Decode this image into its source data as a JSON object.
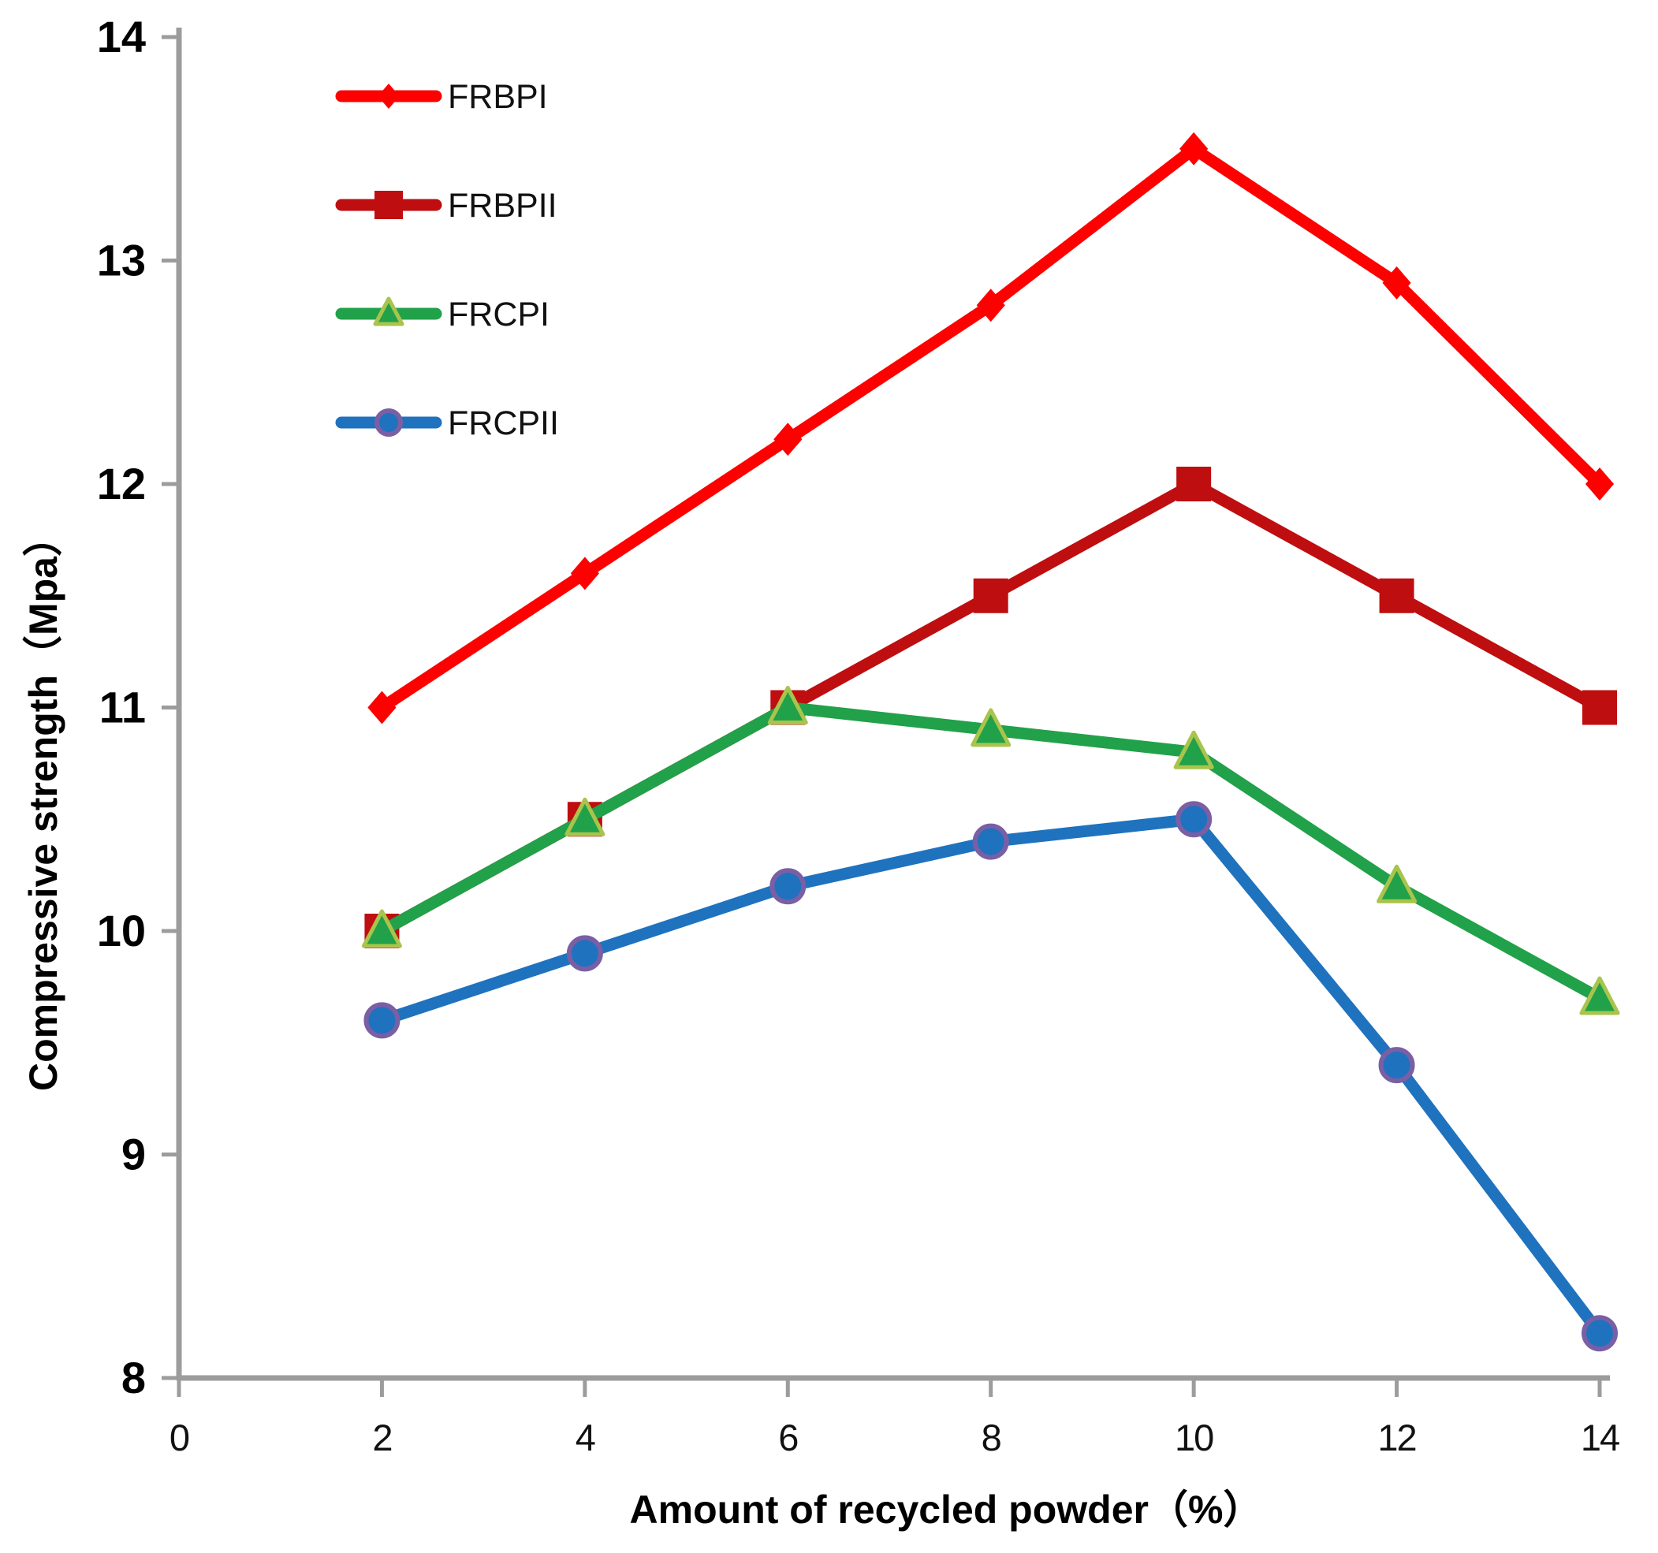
{
  "chart_data": {
    "type": "line",
    "title": "",
    "xlabel": "Amount of recycled powder（%）",
    "ylabel": "Compressive strength（Mpa）",
    "x": [
      2,
      4,
      6,
      8,
      10,
      12,
      14
    ],
    "x_ticks": [
      0,
      2,
      4,
      6,
      8,
      10,
      12,
      14
    ],
    "y_ticks": [
      8,
      9,
      10,
      11,
      12,
      13,
      14
    ],
    "xlim": [
      0,
      14
    ],
    "ylim": [
      8,
      14
    ],
    "grid": false,
    "legend_position": "top-left-inside",
    "axis_color": "#9c9c9c",
    "text_color": "#000000",
    "series": [
      {
        "name": "FRBPI",
        "marker": "diamond",
        "color": "#fe0000",
        "marker_fill": "#fe0000",
        "marker_stroke": "#fe0000",
        "values": [
          11.0,
          11.6,
          12.2,
          12.8,
          13.5,
          12.9,
          12.0
        ]
      },
      {
        "name": "FRBPII",
        "marker": "square",
        "color": "#be0e10",
        "marker_fill": "#be0e10",
        "marker_stroke": "#be0e10",
        "values": [
          10.0,
          10.5,
          11.0,
          11.5,
          12.0,
          11.5,
          11.0
        ]
      },
      {
        "name": "FRCPI",
        "marker": "triangle",
        "color": "#21a149",
        "marker_fill": "#21a149",
        "marker_stroke": "#a9c44c",
        "values": [
          10.0,
          10.5,
          11.0,
          10.9,
          10.8,
          10.2,
          9.7
        ]
      },
      {
        "name": "FRCPII",
        "marker": "circle",
        "color": "#1f72be",
        "marker_fill": "#1f72be",
        "marker_stroke": "#7a5fa5",
        "values": [
          9.6,
          9.9,
          10.2,
          10.4,
          10.5,
          9.4,
          8.2
        ]
      }
    ]
  }
}
